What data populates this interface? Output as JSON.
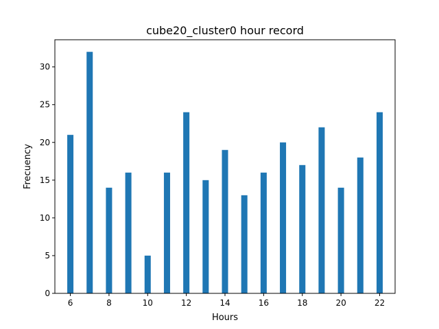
{
  "chart_data": {
    "type": "bar",
    "title": "cube20_cluster0 hour record",
    "xlabel": "Hours",
    "ylabel": "Frecuency",
    "x": [
      6,
      7,
      8,
      9,
      10,
      11,
      12,
      13,
      14,
      15,
      16,
      17,
      18,
      19,
      20,
      21,
      22
    ],
    "values": [
      21,
      32,
      14,
      16,
      5,
      16,
      24,
      15,
      19,
      13,
      16,
      20,
      17,
      22,
      14,
      18,
      24
    ],
    "xlim": [
      5.2,
      22.8
    ],
    "ylim": [
      0,
      33.6
    ],
    "xticks": [
      6,
      8,
      10,
      12,
      14,
      16,
      18,
      20,
      22
    ],
    "yticks": [
      0,
      5,
      10,
      15,
      20,
      25,
      30
    ],
    "bar_color": "#1f77b4",
    "grid": false,
    "legend": "none"
  }
}
